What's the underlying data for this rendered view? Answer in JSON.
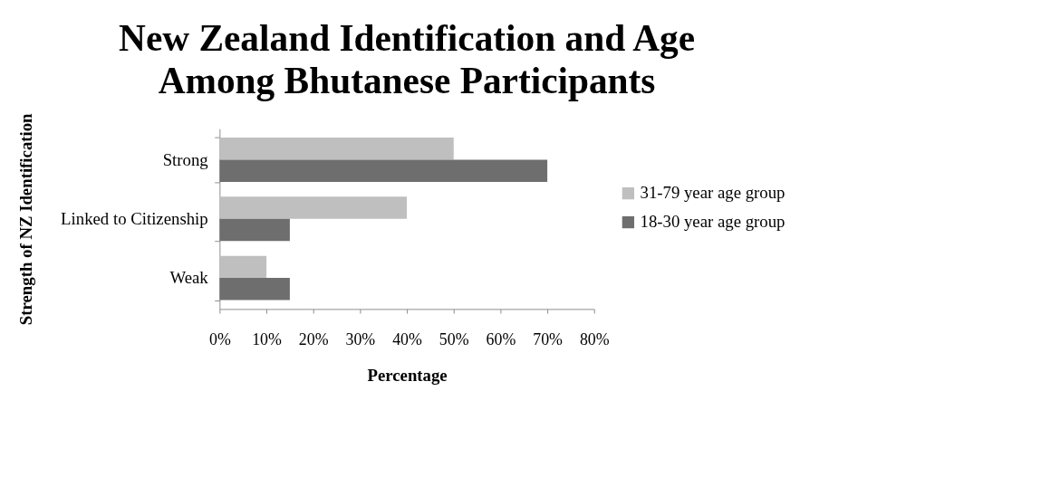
{
  "chart_data": {
    "type": "bar",
    "orientation": "horizontal",
    "title": "New Zealand Identification and Age Among Bhutanese Participants",
    "xlabel": "Percentage",
    "ylabel": "Strength of NZ Identification",
    "categories": [
      "Strong",
      "Linked to Citizenship",
      "Weak"
    ],
    "series": [
      {
        "name": "31-79 year age group",
        "color": "#bfbfbf",
        "values": [
          50,
          40,
          10
        ]
      },
      {
        "name": "18-30 year age group",
        "color": "#6e6e6e",
        "values": [
          70,
          15,
          15
        ]
      }
    ],
    "xlim": [
      0,
      80
    ],
    "xticks": [
      {
        "value": 0,
        "label": "0%"
      },
      {
        "value": 10,
        "label": "10%"
      },
      {
        "value": 20,
        "label": "20%"
      },
      {
        "value": 30,
        "label": "30%"
      },
      {
        "value": 40,
        "label": "40%"
      },
      {
        "value": 50,
        "label": "50%"
      },
      {
        "value": 60,
        "label": "60%"
      },
      {
        "value": 70,
        "label": "70%"
      },
      {
        "value": 80,
        "label": "80%"
      }
    ],
    "grid": false,
    "legend": "right"
  }
}
